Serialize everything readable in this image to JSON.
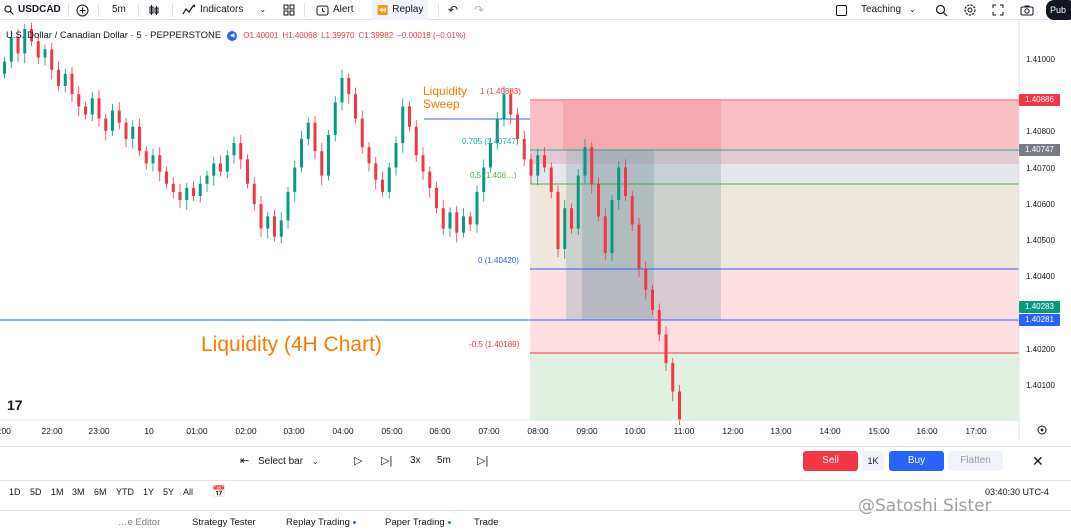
{
  "toolbar": {
    "symbol": "USDCAD",
    "interval": "5m",
    "indicators": "Indicators",
    "alert": "Alert",
    "replay": "Replay",
    "teaching": "Teaching",
    "publish": "Pub"
  },
  "legend": {
    "title": "U.S. Dollar / Canadian Dollar · 5 · PEPPERSTONE",
    "o": "O1.40001",
    "h": "H1.40068",
    "l": "L1.39970",
    "c": "C1.39982",
    "change": "−0.00018 (−0.01%)"
  },
  "annotations": {
    "liquidity_sweep_line1": "Liquidity",
    "liquidity_sweep_line2": "Sweep",
    "liquidity_4h": "Liquidity (4H Chart)"
  },
  "fib_levels": [
    {
      "ratio": "1",
      "text": "1 (1.40883)",
      "price": 1.40883,
      "color": "#f23645"
    },
    {
      "ratio": "0.705",
      "text": "0.705 (1.40747)",
      "price": 1.40747,
      "color": "#22ab94"
    },
    {
      "ratio": "0.5",
      "text": "0.5 (1.406…)",
      "price": 1.40652,
      "color": "#4caf50"
    },
    {
      "ratio": "0",
      "text": "0 (1.40420)",
      "price": 1.4042,
      "color": "#2962ff"
    },
    {
      "ratio": "-0.5",
      "text": "-0.5 (1.40189)",
      "price": 1.40189,
      "color": "#f23645"
    }
  ],
  "price_axis": {
    "ticks": [
      "1.41000",
      "1.40800",
      "1.40700",
      "1.40600",
      "1.40500",
      "1.40400",
      "1.40200",
      "1.40100"
    ],
    "tags": [
      {
        "text": "1.40886",
        "color": "#f23645",
        "price": 1.40886
      },
      {
        "text": "1.40747",
        "color": "#787b86",
        "price": 1.40747
      },
      {
        "text": "1.40283",
        "color": "#089981",
        "price": 1.40299
      },
      {
        "text": "1.40281",
        "color": "#2962ff",
        "price": 1.40272
      }
    ]
  },
  "time_axis": {
    "ticks": [
      ":00",
      "22:00",
      "23:00",
      "10",
      "01:00",
      "02:00",
      "03:00",
      "04:00",
      "05:00",
      "06:00",
      "07:00",
      "08:00",
      "09:00",
      "10:00",
      "11:00",
      "12:00",
      "13:00",
      "14:00",
      "15:00",
      "16:00",
      "17:00"
    ]
  },
  "chart_data": {
    "type": "candlestick",
    "ylim": [
      1.4008,
      1.4104
    ],
    "candles_close": [
      1.4096,
      1.4102,
      1.4098,
      1.4104,
      1.4101,
      1.4097,
      1.4099,
      1.4094,
      1.409,
      1.4093,
      1.4088,
      1.4085,
      1.4083,
      1.4087,
      1.4082,
      1.4079,
      1.4084,
      1.4081,
      1.4077,
      1.408,
      1.4074,
      1.4071,
      1.4073,
      1.4069,
      1.4066,
      1.4064,
      1.4062,
      1.4065,
      1.4063,
      1.4066,
      1.4068,
      1.4071,
      1.4069,
      1.4073,
      1.4076,
      1.4072,
      1.4066,
      1.4061,
      1.4055,
      1.4058,
      1.4053,
      1.4057,
      1.4064,
      1.407,
      1.4077,
      1.4081,
      1.4074,
      1.4068,
      1.4078,
      1.4086,
      1.4092,
      1.4088,
      1.4082,
      1.4075,
      1.4071,
      1.4067,
      1.4064,
      1.407,
      1.4076,
      1.4085,
      1.408,
      1.4073,
      1.4069,
      1.4065,
      1.406,
      1.4055,
      1.4059,
      1.4054,
      1.4058,
      1.4056,
      1.4064,
      1.407,
      1.4076,
      1.4082,
      1.4088,
      1.4083,
      1.4077,
      1.4072,
      1.4068,
      1.4073,
      1.407,
      1.4064,
      1.405,
      1.406,
      1.4055,
      1.4068,
      1.4075,
      1.4066,
      1.4058,
      1.4049,
      1.4062,
      1.407,
      1.4063,
      1.4056,
      1.4045,
      1.404,
      1.4035,
      1.4029,
      1.4022,
      1.4015,
      1.4008
    ]
  },
  "trade_panel": {
    "select_bar": "Select bar",
    "speed": "3x",
    "interval": "5m",
    "sell": "Sell",
    "qty": "1K",
    "buy": "Buy",
    "flatten": "Flatten"
  },
  "ranges": [
    "1D",
    "5D",
    "1M",
    "3M",
    "6M",
    "YTD",
    "1Y",
    "5Y",
    "All"
  ],
  "clock": "03:40:30 UTC-4",
  "bottom_tabs": [
    "…e Editor",
    "Strategy Tester",
    "Replay Trading",
    "Paper Trading",
    "Trade"
  ],
  "watermark": "@Satoshi Sister"
}
